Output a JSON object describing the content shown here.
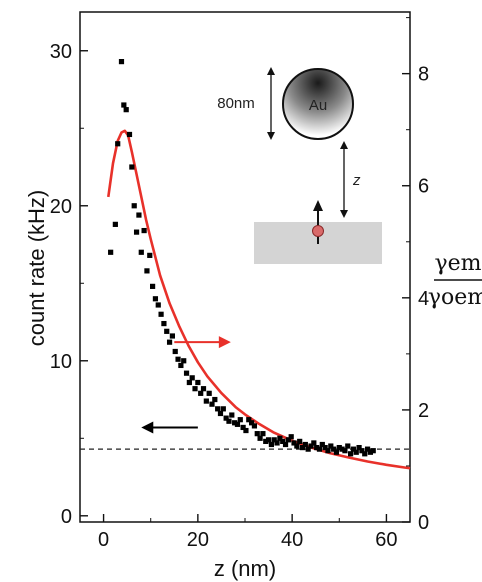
{
  "chart_data": {
    "type": "scatter",
    "xlabel": "z (nm)",
    "ylabel": "count rate (kHz)",
    "y2label_numerator": "γem",
    "y2label_denominator": "γoem",
    "xlim": [
      -5,
      65
    ],
    "ylim": [
      -0.4,
      32.5
    ],
    "y2lim": [
      0,
      9.1
    ],
    "xticks": [
      0,
      20,
      40,
      60
    ],
    "yticks": [
      0,
      10,
      20,
      30
    ],
    "y2ticks": [
      0,
      2,
      4,
      6,
      8
    ],
    "baseline_y": 4.3,
    "series": [
      {
        "kind": "scatter",
        "axis": "left",
        "color": "#000000",
        "x": [
          1.5,
          2.5,
          3.0,
          3.8,
          4.3,
          4.8,
          5.5,
          6.0,
          6.5,
          7.0,
          7.5,
          8.0,
          8.6,
          9.2,
          9.8,
          10.4,
          11.0,
          11.6,
          12.2,
          12.8,
          13.4,
          14.0,
          14.6,
          15.2,
          15.8,
          16.4,
          17.0,
          17.6,
          18.2,
          18.8,
          19.4,
          20.0,
          20.6,
          21.2,
          21.8,
          22.4,
          23.0,
          23.6,
          24.2,
          24.8,
          25.4,
          26.0,
          26.6,
          27.2,
          27.8,
          28.4,
          29.0,
          29.6,
          30.2,
          30.8,
          31.4,
          32.0,
          32.6,
          33.2,
          33.8,
          34.4,
          35.0,
          35.6,
          36.2,
          36.8,
          37.4,
          38.0,
          38.6,
          39.2,
          39.8,
          40.4,
          41.0,
          41.6,
          42.2,
          42.8,
          43.4,
          44.0,
          44.6,
          45.2,
          45.8,
          46.4,
          47.0,
          47.6,
          48.2,
          48.8,
          49.4,
          50.0,
          50.6,
          51.2,
          51.8,
          52.4,
          53.0,
          53.6,
          54.2,
          54.8,
          55.4,
          56.0,
          56.6,
          57.2
        ],
        "y": [
          17.0,
          18.8,
          24.0,
          29.3,
          26.5,
          26.2,
          24.6,
          22.5,
          20.0,
          18.3,
          19.4,
          17.0,
          18.4,
          15.8,
          16.8,
          14.8,
          14.0,
          13.6,
          13.0,
          12.4,
          11.9,
          11.2,
          11.6,
          10.6,
          10.1,
          9.7,
          10.0,
          9.2,
          8.6,
          8.9,
          8.2,
          8.6,
          7.9,
          8.2,
          7.4,
          7.9,
          7.2,
          7.5,
          6.9,
          6.6,
          6.9,
          6.3,
          6.1,
          6.5,
          6.0,
          5.9,
          6.2,
          5.7,
          5.5,
          6.2,
          6.0,
          5.8,
          5.3,
          5.0,
          5.3,
          4.8,
          4.9,
          4.6,
          4.9,
          4.7,
          5.0,
          4.8,
          4.6,
          4.9,
          5.1,
          4.7,
          4.5,
          4.8,
          4.4,
          4.6,
          4.3,
          4.5,
          4.7,
          4.4,
          4.3,
          4.6,
          4.4,
          4.2,
          4.5,
          4.3,
          4.1,
          4.4,
          4.3,
          4.2,
          4.5,
          4.0,
          4.3,
          4.1,
          4.4,
          4.2,
          4.0,
          4.3,
          4.1,
          4.2
        ]
      },
      {
        "kind": "line",
        "axis": "right",
        "color": "#e8312a",
        "x": [
          1,
          2,
          3,
          3.8,
          4.5,
          5.2,
          6,
          7,
          8,
          9,
          10,
          12,
          14,
          16,
          18,
          20,
          22,
          25,
          28,
          30,
          33,
          36,
          40,
          44,
          48,
          52,
          56,
          60,
          64,
          65
        ],
        "y": [
          5.8,
          6.4,
          6.8,
          6.95,
          6.98,
          6.9,
          6.6,
          6.2,
          5.8,
          5.4,
          5.05,
          4.4,
          3.9,
          3.5,
          3.15,
          2.85,
          2.6,
          2.3,
          2.05,
          1.92,
          1.75,
          1.6,
          1.45,
          1.33,
          1.23,
          1.15,
          1.08,
          1.02,
          0.97,
          0.96
        ]
      }
    ],
    "annotations": [
      {
        "type": "arrow",
        "direction": "right",
        "color": "#e8312a",
        "x_from": 15,
        "x_to": 27,
        "y": 11.2
      },
      {
        "type": "arrow",
        "direction": "left",
        "color": "#000000",
        "x_from": 20,
        "x_to": 8,
        "y": 5.7
      }
    ]
  },
  "inset": {
    "particle_label": "Au",
    "size_label": "80nm",
    "distance_label": "z"
  }
}
